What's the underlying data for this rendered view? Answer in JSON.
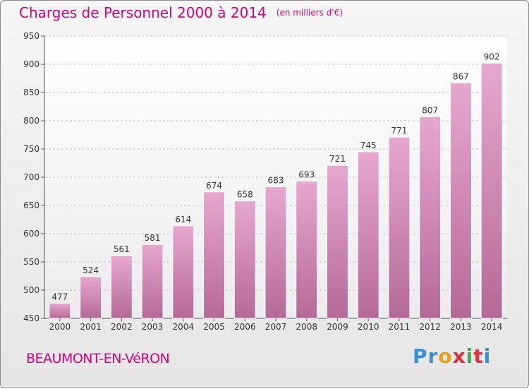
{
  "header": {
    "title": "Charges de Personnel 2000 à 2014",
    "unit": "(en milliers d'€)"
  },
  "footer": {
    "location": "BEAUMONT-EN-VéRON",
    "logo_text": "Proxiti",
    "logo_colors": [
      "#3a8fd6",
      "#3a8fd6",
      "#e8a013",
      "#e0303a",
      "#3ab04a",
      "#e0303a"
    ]
  },
  "colors": {
    "accent": "#d9007a",
    "bar_top": "#e6a8cf",
    "bar_bottom": "#b46a96"
  },
  "chart_data": {
    "type": "bar",
    "categories": [
      "2000",
      "2001",
      "2002",
      "2003",
      "2004",
      "2005",
      "2006",
      "2007",
      "2008",
      "2009",
      "2010",
      "2011",
      "2012",
      "2013",
      "2014"
    ],
    "values": [
      477,
      524,
      561,
      581,
      614,
      674,
      658,
      683,
      693,
      721,
      745,
      771,
      807,
      867,
      902
    ],
    "ylim": [
      450,
      950
    ],
    "yticks": [
      450,
      500,
      550,
      600,
      650,
      700,
      750,
      800,
      850,
      900,
      950
    ],
    "grid": true,
    "xlabel": "",
    "ylabel": ""
  }
}
